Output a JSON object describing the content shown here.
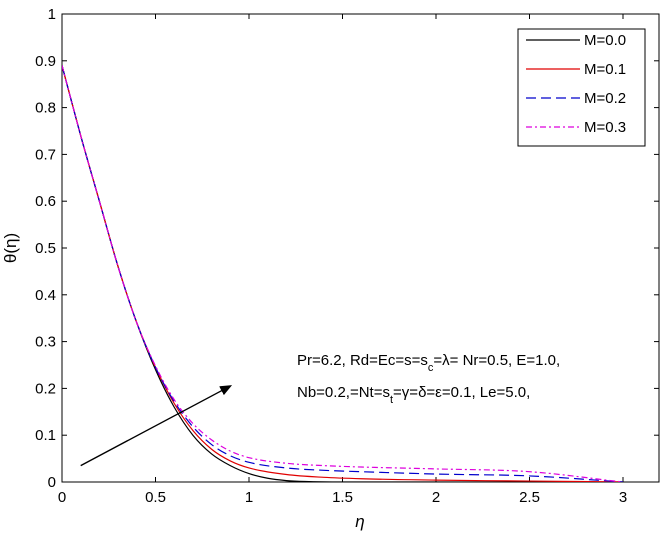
{
  "chart_data": {
    "type": "line",
    "title": "",
    "xlabel": "η",
    "ylabel": "θ(η)",
    "xlim": [
      0,
      3.1
    ],
    "ylim": [
      0,
      1
    ],
    "grid": false,
    "legend_position": "top-right",
    "x_ticks": [
      {
        "v": 0,
        "label": "0"
      },
      {
        "v": 0.5,
        "label": "0.5"
      },
      {
        "v": 1,
        "label": "1"
      },
      {
        "v": 1.5,
        "label": "1.5"
      },
      {
        "v": 2,
        "label": "2"
      },
      {
        "v": 2.5,
        "label": "2.5"
      },
      {
        "v": 3,
        "label": "3"
      }
    ],
    "y_ticks": [
      {
        "v": 0,
        "label": "0"
      },
      {
        "v": 0.1,
        "label": "0.1"
      },
      {
        "v": 0.2,
        "label": "0.2"
      },
      {
        "v": 0.3,
        "label": "0.3"
      },
      {
        "v": 0.4,
        "label": "0.4"
      },
      {
        "v": 0.5,
        "label": "0.5"
      },
      {
        "v": 0.6,
        "label": "0.6"
      },
      {
        "v": 0.7,
        "label": "0.7"
      },
      {
        "v": 0.8,
        "label": "0.8"
      },
      {
        "v": 0.9,
        "label": "0.9"
      },
      {
        "v": 1,
        "label": "1"
      }
    ],
    "series": [
      {
        "name": "M=0.0",
        "color": "#000000",
        "dash": "",
        "x": [
          0,
          0.1,
          0.2,
          0.3,
          0.4,
          0.5,
          0.6,
          0.7,
          0.8,
          0.9,
          1.0,
          1.1,
          1.2,
          1.3,
          1.5,
          2.0,
          2.5,
          3.0
        ],
        "y": [
          0.89,
          0.74,
          0.6,
          0.46,
          0.34,
          0.24,
          0.16,
          0.1,
          0.06,
          0.035,
          0.018,
          0.008,
          0.003,
          0.001,
          0.0,
          0.0,
          0.0,
          0.0
        ]
      },
      {
        "name": "M=0.1",
        "color": "#e00000",
        "dash": "",
        "x": [
          0,
          0.1,
          0.2,
          0.3,
          0.4,
          0.5,
          0.6,
          0.7,
          0.8,
          0.9,
          1.0,
          1.2,
          1.4,
          1.6,
          2.0,
          2.5,
          3.0
        ],
        "y": [
          0.89,
          0.74,
          0.6,
          0.46,
          0.34,
          0.245,
          0.168,
          0.11,
          0.07,
          0.045,
          0.03,
          0.016,
          0.01,
          0.007,
          0.004,
          0.002,
          0.0
        ]
      },
      {
        "name": "M=0.2",
        "color": "#0000cc",
        "dash": "10,5",
        "x": [
          0,
          0.1,
          0.2,
          0.3,
          0.4,
          0.5,
          0.6,
          0.7,
          0.8,
          0.9,
          1.0,
          1.2,
          1.4,
          1.6,
          2.0,
          2.5,
          3.0
        ],
        "y": [
          0.89,
          0.74,
          0.6,
          0.46,
          0.34,
          0.245,
          0.172,
          0.118,
          0.08,
          0.056,
          0.042,
          0.03,
          0.025,
          0.022,
          0.017,
          0.013,
          0.0
        ]
      },
      {
        "name": "M=0.3",
        "color": "#dd00dd",
        "dash": "6,3,2,3",
        "x": [
          0,
          0.1,
          0.2,
          0.3,
          0.4,
          0.5,
          0.6,
          0.7,
          0.8,
          0.9,
          1.0,
          1.2,
          1.4,
          1.6,
          2.0,
          2.5,
          3.0
        ],
        "y": [
          0.89,
          0.74,
          0.6,
          0.46,
          0.34,
          0.248,
          0.176,
          0.125,
          0.09,
          0.066,
          0.052,
          0.04,
          0.035,
          0.032,
          0.028,
          0.022,
          0.0
        ]
      }
    ],
    "annotation": {
      "line1_parts": [
        {
          "text": "Pr=6.2, Rd=Ec=s=s",
          "sub": false
        },
        {
          "text": "c",
          "sub": true
        },
        {
          "text": "=λ= Nr=0.5, E=1.0,",
          "sub": false
        }
      ],
      "line2_parts": [
        {
          "text": "Nb=0.2,=Nt=s",
          "sub": false
        },
        {
          "text": "t",
          "sub": true
        },
        {
          "text": "=γ=δ=ε=0.1, Le=5.0,",
          "sub": false
        }
      ],
      "arrow": {
        "from": [
          0.1,
          0.035
        ],
        "to": [
          0.9,
          0.205
        ]
      }
    }
  }
}
